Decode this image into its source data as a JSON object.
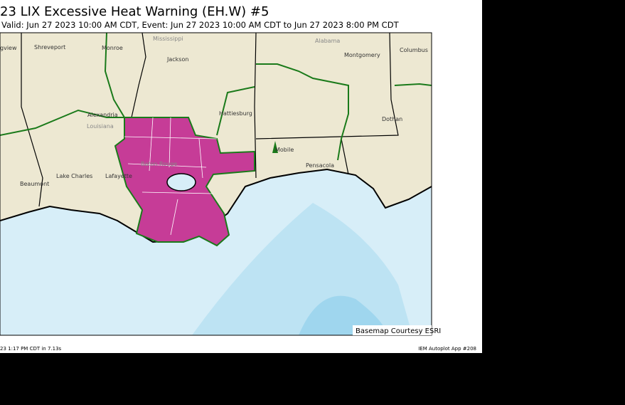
{
  "header": {
    "title": "23 LIX Excessive Heat Warning (EH.W) #5",
    "subtitle": "Valid: Jun 27 2023 10:00 AM CDT, Event: Jun 27 2023 10:00 AM CDT to Jun 27 2023 8:00 PM CDT"
  },
  "map": {
    "credit": "Basemap Courtesy ESRI",
    "labels": [
      "gview",
      "Shreveport",
      "Monroe",
      "Mississippi",
      "Jackson",
      "Alabama",
      "Montgomery",
      "Columbus",
      "Alexandria",
      "Louisiana",
      "Hattiesburg",
      "Dothan",
      "Mobile",
      "Pensacola",
      "Lake Charles",
      "Lafayette",
      "Beaumont",
      "Baton Rouge"
    ]
  },
  "footer": {
    "left": "23 1:17 PM CDT in 7.13s",
    "right": "IEM Autoplot App #208"
  }
}
